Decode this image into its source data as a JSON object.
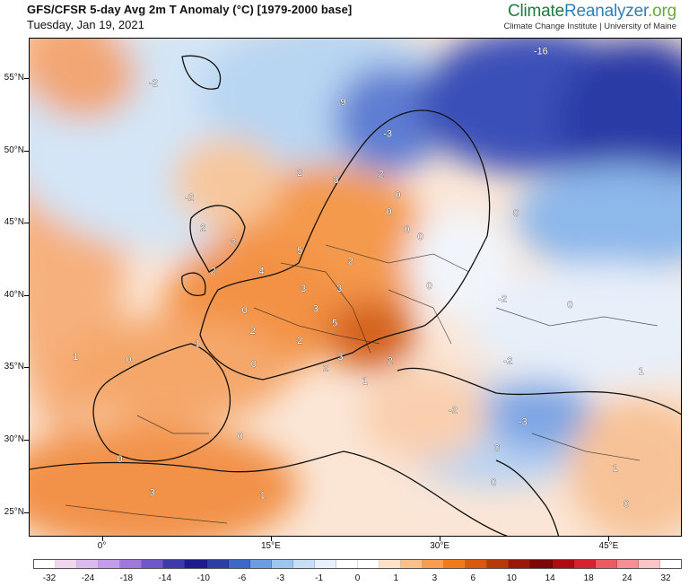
{
  "header": {
    "title": "GFS/CFSR 5-day Avg 2m T Anomaly (°C) [1979-2000 base]",
    "date": "Tuesday, Jan 19, 2021"
  },
  "logo": {
    "part1": "Climate",
    "part2": "Reanalyzer",
    "part3": ".org",
    "subtitle": "Climate Change Institute | University of Maine"
  },
  "map": {
    "region": "Europe",
    "lat_labels": [
      "55°N",
      "50°N",
      "45°N",
      "40°N",
      "35°N",
      "30°N",
      "25°N"
    ],
    "lon_labels": [
      "0°",
      "15°E",
      "30°E",
      "45°E"
    ],
    "contour_labels": [
      {
        "text": "-16",
        "lon": 38.9,
        "lat": 56.7
      },
      {
        "text": "-9",
        "lon": 21.2,
        "lat": 53.2
      },
      {
        "text": "-3",
        "lon": 25.3,
        "lat": 51.0
      },
      {
        "text": "-2",
        "lon": 4.5,
        "lat": 54.5
      },
      {
        "text": "2",
        "lon": 17.5,
        "lat": 48.3
      },
      {
        "text": "3",
        "lon": 20.7,
        "lat": 47.8
      },
      {
        "text": "2",
        "lon": 24.7,
        "lat": 48.2
      },
      {
        "text": "0",
        "lon": 26.2,
        "lat": 46.8
      },
      {
        "text": "0",
        "lon": 36.7,
        "lat": 45.5
      },
      {
        "text": "0",
        "lon": 25.4,
        "lat": 45.6
      },
      {
        "text": "0",
        "lon": 27.0,
        "lat": 44.4
      },
      {
        "text": "0",
        "lon": 28.2,
        "lat": 43.9
      },
      {
        "text": "-2",
        "lon": 7.7,
        "lat": 46.6
      },
      {
        "text": "2",
        "lon": 8.9,
        "lat": 44.5
      },
      {
        "text": "5",
        "lon": 17.5,
        "lat": 42.9
      },
      {
        "text": "2",
        "lon": 11.6,
        "lat": 43.5
      },
      {
        "text": "4",
        "lon": 14.1,
        "lat": 41.5
      },
      {
        "text": "2",
        "lon": 9.8,
        "lat": 41.5
      },
      {
        "text": "2",
        "lon": 22.0,
        "lat": 42.2
      },
      {
        "text": "0",
        "lon": 29.0,
        "lat": 40.5
      },
      {
        "text": "3",
        "lon": 17.8,
        "lat": 40.3
      },
      {
        "text": "3",
        "lon": 21.0,
        "lat": 40.3
      },
      {
        "text": "-2",
        "lon": 35.5,
        "lat": 39.6
      },
      {
        "text": "3",
        "lon": 18.9,
        "lat": 38.9
      },
      {
        "text": "5",
        "lon": 20.6,
        "lat": 37.9
      },
      {
        "text": "0",
        "lon": 12.6,
        "lat": 38.8
      },
      {
        "text": "2",
        "lon": 13.3,
        "lat": 37.4
      },
      {
        "text": "2",
        "lon": 17.5,
        "lat": 36.7
      },
      {
        "text": "0",
        "lon": 41.5,
        "lat": 39.2
      },
      {
        "text": "3",
        "lon": 21.1,
        "lat": 35.6
      },
      {
        "text": "2",
        "lon": 19.8,
        "lat": 34.8
      },
      {
        "text": "2",
        "lon": 25.5,
        "lat": 35.3
      },
      {
        "text": "-2",
        "lon": 36.0,
        "lat": 35.3
      },
      {
        "text": "1",
        "lon": 23.3,
        "lat": 33.9
      },
      {
        "text": "0",
        "lon": 2.3,
        "lat": 35.4
      },
      {
        "text": "1",
        "lon": -2.4,
        "lat": 35.6
      },
      {
        "text": "1",
        "lon": 8.4,
        "lat": 36.5
      },
      {
        "text": "0",
        "lon": 13.4,
        "lat": 35.1
      },
      {
        "text": "-2",
        "lon": 31.1,
        "lat": 31.9
      },
      {
        "text": "-3",
        "lon": 37.3,
        "lat": 31.1
      },
      {
        "text": "1",
        "lon": 47.8,
        "lat": 34.6
      },
      {
        "text": "0",
        "lon": 12.2,
        "lat": 30.1
      },
      {
        "text": "0",
        "lon": 35.0,
        "lat": 29.3
      },
      {
        "text": "1",
        "lon": 45.5,
        "lat": 27.9
      },
      {
        "text": "0",
        "lon": 34.7,
        "lat": 26.9
      },
      {
        "text": "3",
        "lon": 4.4,
        "lat": 26.2
      },
      {
        "text": "1",
        "lon": 14.2,
        "lat": 26.0
      },
      {
        "text": "0",
        "lon": 46.5,
        "lat": 25.4
      },
      {
        "text": "0",
        "lon": 1.5,
        "lat": 28.5
      }
    ]
  },
  "colorbar": {
    "tick_labels": [
      "-32",
      "-24",
      "-18",
      "-14",
      "-10",
      "-6",
      "-3",
      "-1",
      "0",
      "1",
      "3",
      "6",
      "10",
      "14",
      "18",
      "24",
      "32"
    ],
    "colors": [
      "#ffffff",
      "#efd8ef",
      "#dbbaf0",
      "#c39deb",
      "#9f78dc",
      "#6e57c9",
      "#3f3aab",
      "#1c1c8c",
      "#2c3ea4",
      "#3c69c8",
      "#6a9de2",
      "#9cc6f0",
      "#c6def6",
      "#e8f1fb",
      "#ffffff",
      "#ffffff",
      "#fde2c8",
      "#fbc089",
      "#f89c4e",
      "#f17b1b",
      "#d95a0e",
      "#b8380a",
      "#9a1708",
      "#7d0606",
      "#b00a12",
      "#d7232d",
      "#ec5b62",
      "#f58f95",
      "#fbc5c8",
      "#ffffff"
    ]
  }
}
